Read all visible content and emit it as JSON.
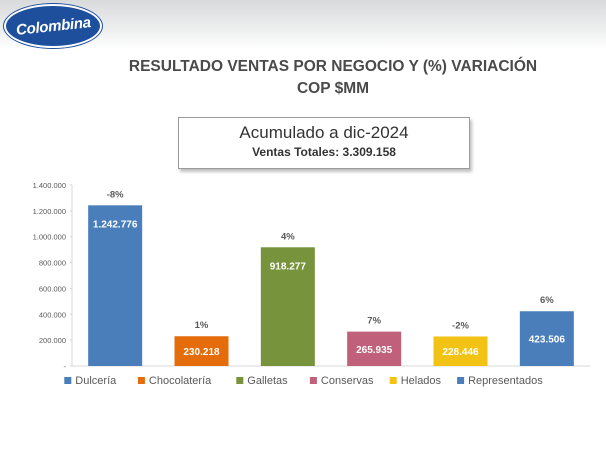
{
  "header": {
    "logo_text": "Colombina",
    "title_line1": "RESULTADO VENTAS POR NEGOCIO Y (%) VARIACIÓN",
    "title_line2": "COP $MM"
  },
  "summary": {
    "heading": "Acumulado a dic-2024",
    "subtitle": "Ventas Totales: 3.309.158"
  },
  "chart_data": {
    "type": "bar",
    "categories": [
      "Dulcería",
      "Chocolatería",
      "Galletas",
      "Conservas",
      "Helados",
      "Representados"
    ],
    "values": [
      1242776,
      230218,
      918277,
      265935,
      228446,
      423506
    ],
    "value_labels": [
      "1.242.776",
      "230.218",
      "918.277",
      "265.935",
      "228.446",
      "423.506"
    ],
    "variation_labels": [
      "-8%",
      "1%",
      "4%",
      "7%",
      "-2%",
      "6%"
    ],
    "colors": [
      "#4a7ebb",
      "#e46c0a",
      "#77933c",
      "#c0607b",
      "#f2c314",
      "#4a7ebb"
    ],
    "ylim": [
      0,
      1400000
    ],
    "yticks": [
      0,
      200000,
      400000,
      600000,
      800000,
      1000000,
      1200000,
      1400000
    ],
    "ytick_labels": [
      "-",
      "200.000",
      "400.000",
      "600.000",
      "800.000",
      "1.000.000",
      "1.200.000",
      "1.400.000"
    ],
    "legend_position": "bottom",
    "grid": false
  }
}
